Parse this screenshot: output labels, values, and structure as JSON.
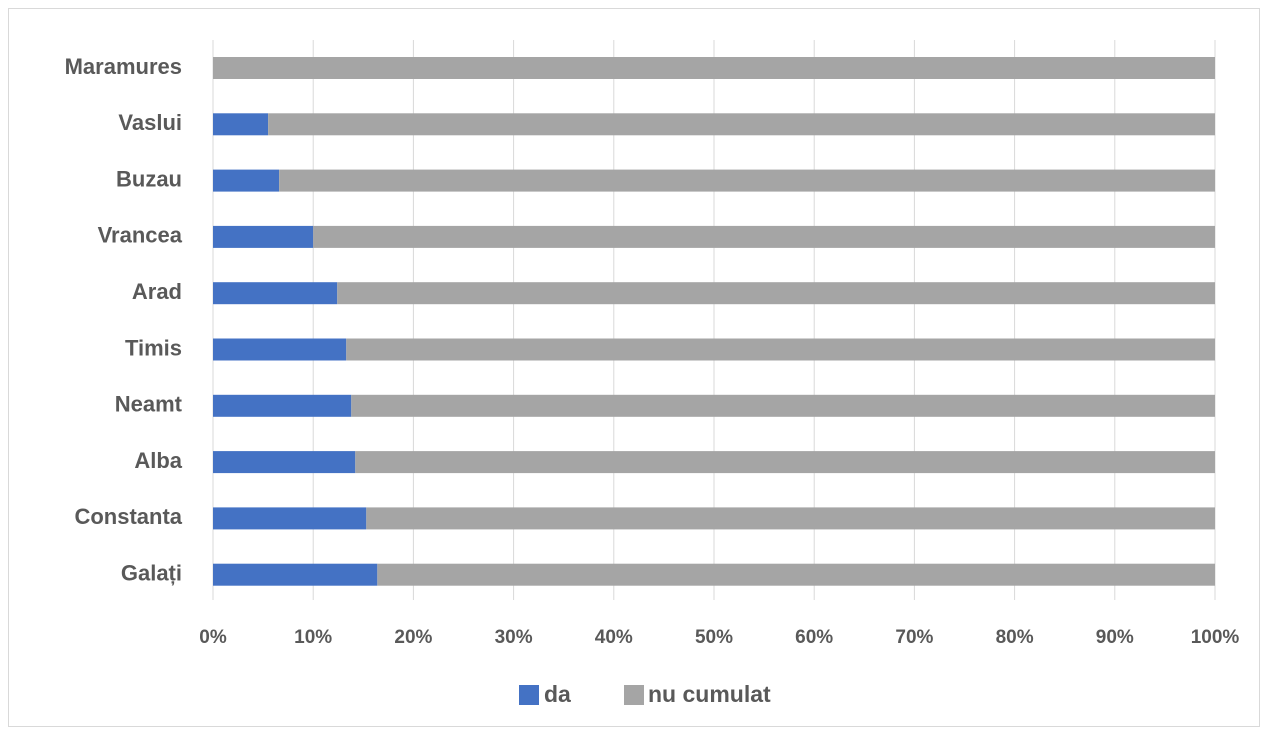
{
  "chart_data": {
    "type": "bar",
    "orientation": "horizontal",
    "stacked": "percent",
    "categories": [
      "Maramures",
      "Vaslui",
      "Buzau",
      "Vrancea",
      "Arad",
      "Timis",
      "Neamt",
      "Alba",
      "Constanta",
      "Galați"
    ],
    "series": [
      {
        "name": "da",
        "color": "#4472c4",
        "values": [
          0,
          5.5,
          6.6,
          10,
          12.4,
          13.3,
          13.8,
          14.2,
          15.3,
          16.4
        ]
      },
      {
        "name": "nu cumulat",
        "color": "#a5a5a5",
        "values": [
          100,
          94.5,
          93.4,
          90,
          87.6,
          86.7,
          86.2,
          85.8,
          84.7,
          83.6
        ]
      }
    ],
    "xticks": [
      "0%",
      "10%",
      "20%",
      "30%",
      "40%",
      "50%",
      "60%",
      "70%",
      "80%",
      "90%",
      "100%"
    ],
    "xlim": [
      0,
      100
    ],
    "grid": true,
    "legend_position": "bottom"
  }
}
